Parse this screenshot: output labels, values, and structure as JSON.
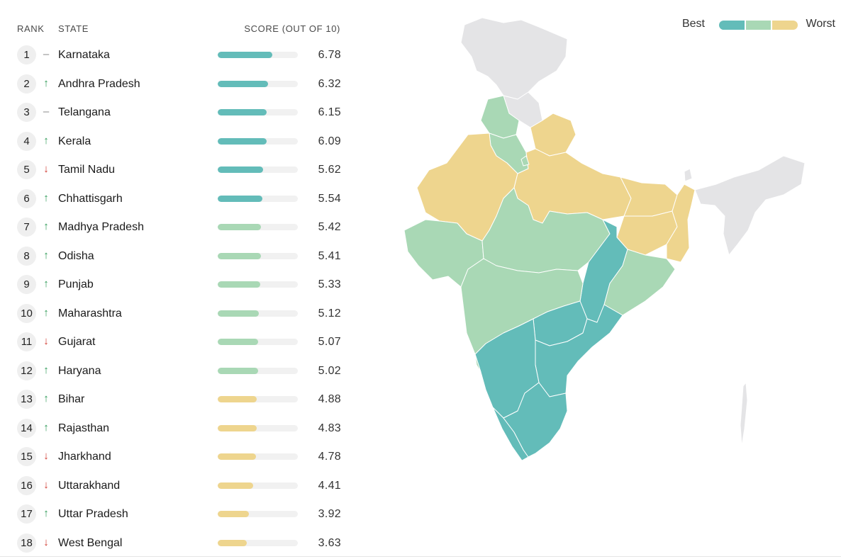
{
  "colors": {
    "best": "#63bcb9",
    "middle": "#a9d8b5",
    "worst": "#eed58e",
    "no_data": "#e4e4e6",
    "up": "#2e9b57",
    "down": "#d0382f",
    "neutral": "#888888"
  },
  "header": {
    "rank": "RANK",
    "state": "STATE",
    "score": "SCORE (OUT OF 10)"
  },
  "legend": {
    "best": "Best",
    "worst": "Worst"
  },
  "chart_data": {
    "type": "table",
    "max_score": 10,
    "rows": [
      {
        "rank": "1",
        "trend": "–",
        "trend_dir": "same",
        "state": "Karnataka",
        "score": "6.78",
        "value": 6.78,
        "tier": "best"
      },
      {
        "rank": "2",
        "trend": "↑",
        "trend_dir": "up",
        "state": "Andhra Pradesh",
        "score": "6.32",
        "value": 6.32,
        "tier": "best"
      },
      {
        "rank": "3",
        "trend": "–",
        "trend_dir": "same",
        "state": "Telangana",
        "score": "6.15",
        "value": 6.15,
        "tier": "best"
      },
      {
        "rank": "4",
        "trend": "↑",
        "trend_dir": "up",
        "state": "Kerala",
        "score": "6.09",
        "value": 6.09,
        "tier": "best"
      },
      {
        "rank": "5",
        "trend": "↓",
        "trend_dir": "down",
        "state": "Tamil Nadu",
        "score": "5.62",
        "value": 5.62,
        "tier": "best"
      },
      {
        "rank": "6",
        "trend": "↑",
        "trend_dir": "up",
        "state": "Chhattisgarh",
        "score": "5.54",
        "value": 5.54,
        "tier": "best"
      },
      {
        "rank": "7",
        "trend": "↑",
        "trend_dir": "up",
        "state": "Madhya Pradesh",
        "score": "5.42",
        "value": 5.42,
        "tier": "middle"
      },
      {
        "rank": "8",
        "trend": "↑",
        "trend_dir": "up",
        "state": "Odisha",
        "score": "5.41",
        "value": 5.41,
        "tier": "middle"
      },
      {
        "rank": "9",
        "trend": "↑",
        "trend_dir": "up",
        "state": "Punjab",
        "score": "5.33",
        "value": 5.33,
        "tier": "middle"
      },
      {
        "rank": "10",
        "trend": "↑",
        "trend_dir": "up",
        "state": "Maharashtra",
        "score": "5.12",
        "value": 5.12,
        "tier": "middle"
      },
      {
        "rank": "11",
        "trend": "↓",
        "trend_dir": "down",
        "state": "Gujarat",
        "score": "5.07",
        "value": 5.07,
        "tier": "middle"
      },
      {
        "rank": "12",
        "trend": "↑",
        "trend_dir": "up",
        "state": "Haryana",
        "score": "5.02",
        "value": 5.02,
        "tier": "middle"
      },
      {
        "rank": "13",
        "trend": "↑",
        "trend_dir": "up",
        "state": "Bihar",
        "score": "4.88",
        "value": 4.88,
        "tier": "worst"
      },
      {
        "rank": "14",
        "trend": "↑",
        "trend_dir": "up",
        "state": "Rajasthan",
        "score": "4.83",
        "value": 4.83,
        "tier": "worst"
      },
      {
        "rank": "15",
        "trend": "↓",
        "trend_dir": "down",
        "state": "Jharkhand",
        "score": "4.78",
        "value": 4.78,
        "tier": "worst"
      },
      {
        "rank": "16",
        "trend": "↓",
        "trend_dir": "down",
        "state": "Uttarakhand",
        "score": "4.41",
        "value": 4.41,
        "tier": "worst"
      },
      {
        "rank": "17",
        "trend": "↑",
        "trend_dir": "up",
        "state": "Uttar Pradesh",
        "score": "3.92",
        "value": 3.92,
        "tier": "worst"
      },
      {
        "rank": "18",
        "trend": "↓",
        "trend_dir": "down",
        "state": "West Bengal",
        "score": "3.63",
        "value": 3.63,
        "tier": "worst"
      }
    ]
  }
}
